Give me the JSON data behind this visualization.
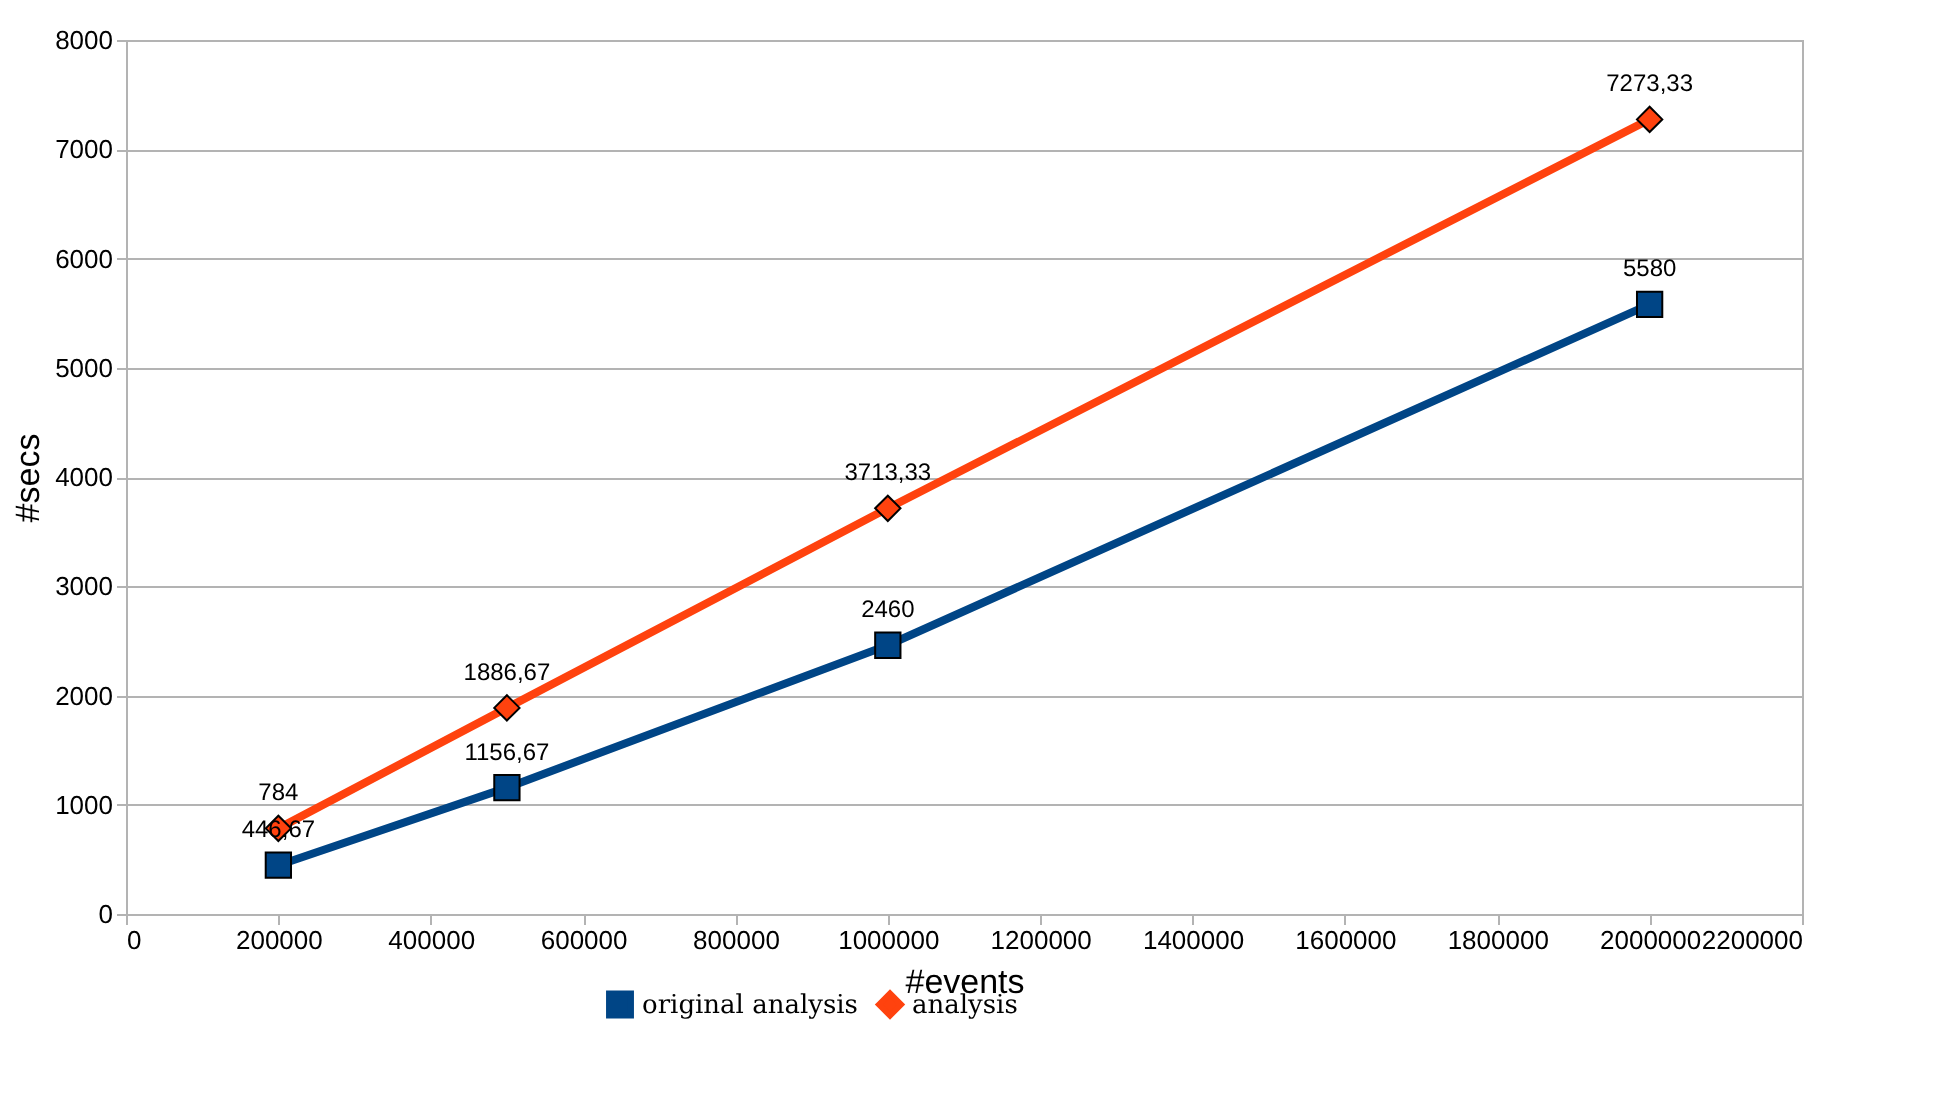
{
  "chart_data": {
    "type": "line",
    "xlabel": "#events",
    "ylabel": "#secs",
    "x": [
      200000,
      500000,
      1000000,
      2000000
    ],
    "series": [
      {
        "name": "original analysis",
        "color": "#004586",
        "marker": "square",
        "values": [
          446.67,
          1156.67,
          2460,
          5580
        ],
        "value_labels": [
          "446,67",
          "1156,67",
          "2460",
          "5580"
        ]
      },
      {
        "name": "analysis",
        "color": "#ff420e",
        "marker": "diamond",
        "values": [
          784,
          1886.67,
          3713.33,
          7273.33
        ],
        "value_labels": [
          "784",
          "1886,67",
          "3713,33",
          "7273,33"
        ]
      }
    ],
    "xlim": [
      0,
      2200000
    ],
    "xticks": [
      0,
      200000,
      400000,
      600000,
      800000,
      1000000,
      1200000,
      1400000,
      1600000,
      1800000,
      2000000,
      2200000
    ],
    "ylim": [
      0,
      8000
    ],
    "yticks": [
      0,
      1000,
      2000,
      3000,
      4000,
      5000,
      6000,
      7000,
      8000
    ],
    "grid": "y",
    "legend": "bottom",
    "line_style": "solid"
  }
}
